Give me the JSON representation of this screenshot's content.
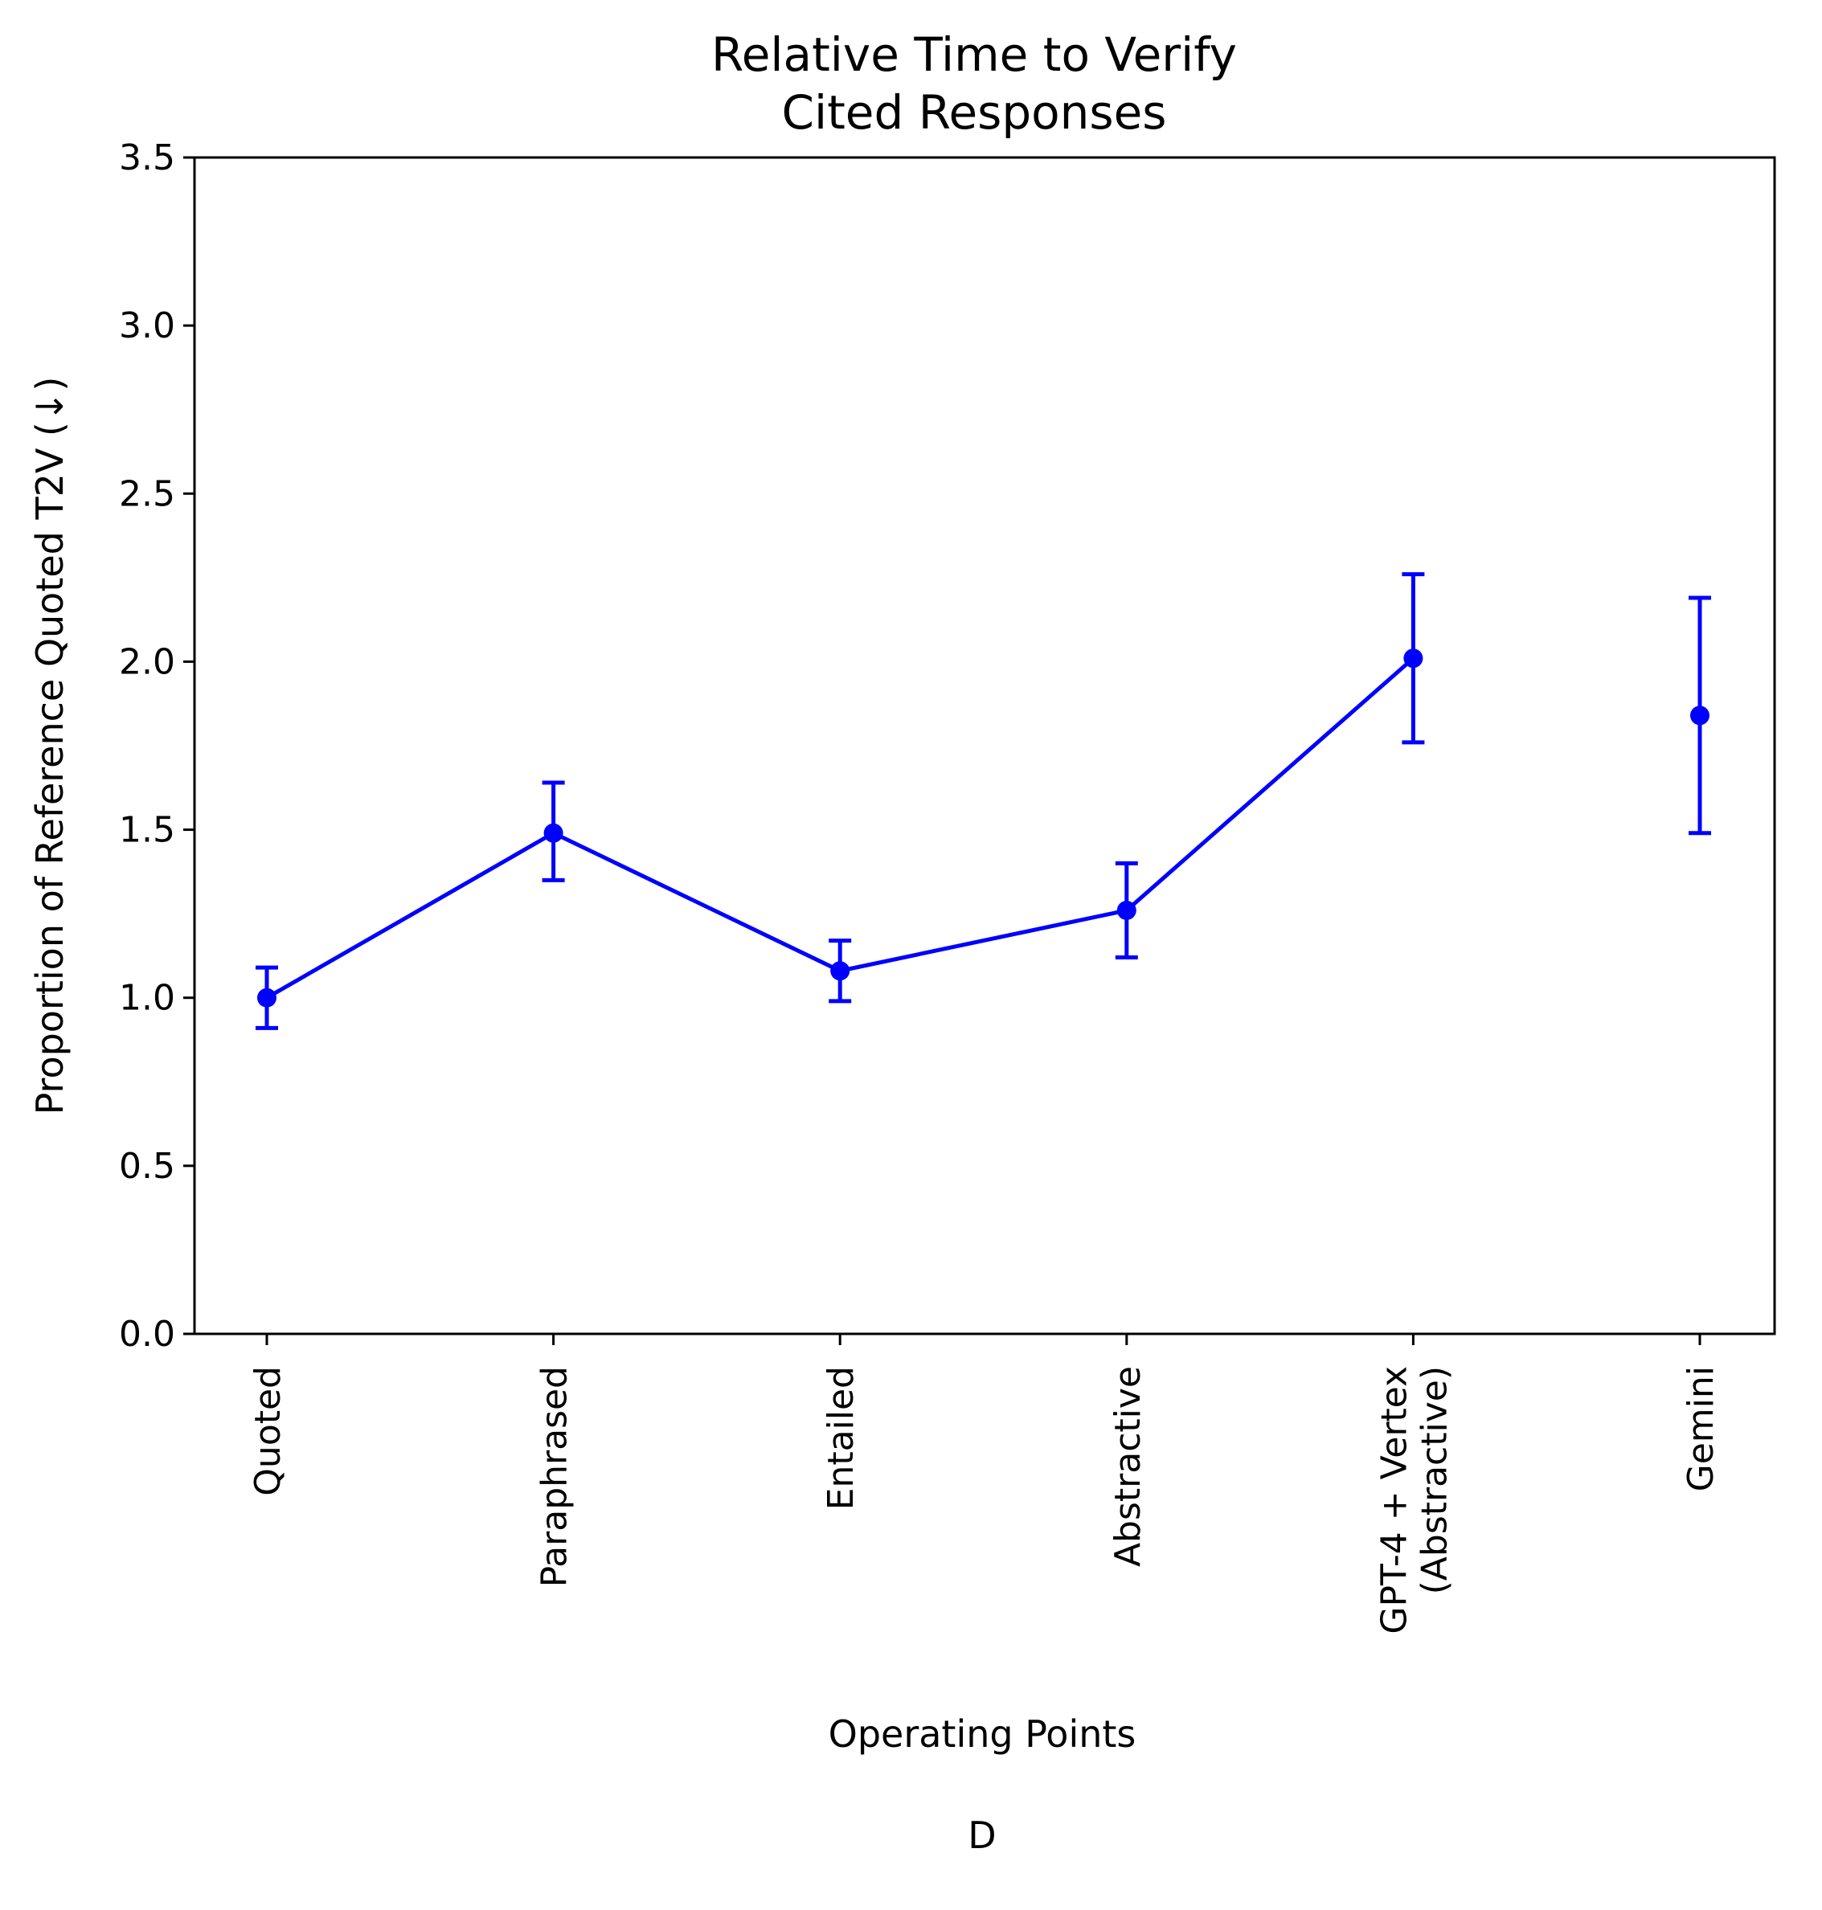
{
  "chart_data": {
    "type": "line",
    "title_lines": [
      "Relative Time to Verify",
      "Cited Responses"
    ],
    "xlabel": "Operating Points",
    "ylabel": "Proportion of Reference Quoted T2V (↓)",
    "panel_label": "D",
    "categories": [
      [
        "Quoted"
      ],
      [
        "Paraphrased"
      ],
      [
        "Entailed"
      ],
      [
        "Abstractive"
      ],
      [
        "GPT-4 + Vertex",
        "(Abstractive)"
      ],
      [
        "Gemini"
      ]
    ],
    "ylim": [
      0,
      3.5
    ],
    "yticks": [
      "0.0",
      "0.5",
      "1.0",
      "1.5",
      "2.0",
      "2.5",
      "3.0",
      "3.5"
    ],
    "grid": false,
    "series": [
      {
        "color": "#0000ff",
        "points": [
          {
            "category_index": 0,
            "value": 1.0,
            "err_low": 0.91,
            "err_high": 1.09
          },
          {
            "category_index": 1,
            "value": 1.49,
            "err_low": 1.35,
            "err_high": 1.64
          },
          {
            "category_index": 2,
            "value": 1.08,
            "err_low": 0.99,
            "err_high": 1.17
          },
          {
            "category_index": 3,
            "value": 1.26,
            "err_low": 1.12,
            "err_high": 1.4
          },
          {
            "category_index": 4,
            "value": 2.01,
            "err_low": 1.76,
            "err_high": 2.26
          }
        ]
      },
      {
        "color": "#0000ff",
        "points": [
          {
            "category_index": 5,
            "value": 1.84,
            "err_low": 1.49,
            "err_high": 2.19
          }
        ]
      }
    ]
  }
}
